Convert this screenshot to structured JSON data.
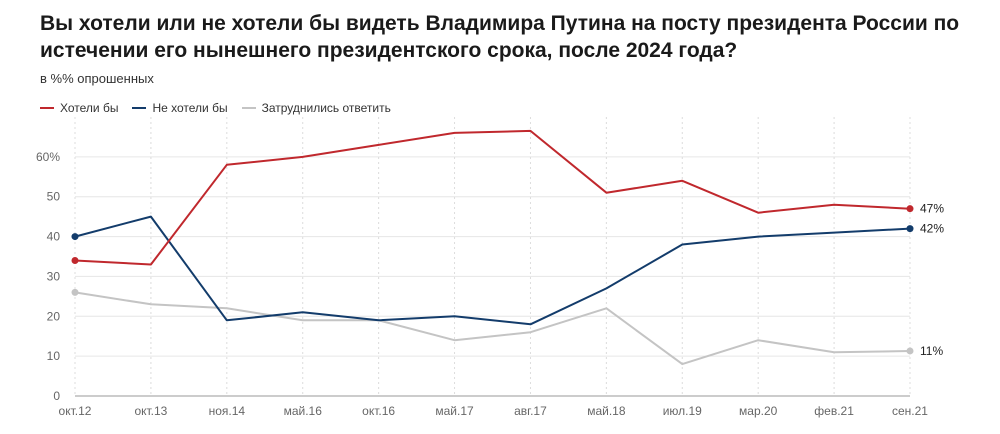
{
  "title": "Вы хотели или не хотели бы видеть Владимира Путина на посту президента России по истечении его нынешнего президентского срока, после 2024 года?",
  "subtitle": "в %% опрошенных",
  "chart_data": {
    "type": "line",
    "title": "Вы хотели или не хотели бы видеть Владимира Путина на посту президента России по истечении его нынешнего президентского срока, после 2024 года?",
    "subtitle": "в %% опрошенных",
    "categories": [
      "окт.12",
      "окт.13",
      "ноя.14",
      "май.16",
      "окт.16",
      "май.17",
      "авг.17",
      "май.18",
      "июл.19",
      "мар.20",
      "фев.21",
      "сен.21"
    ],
    "y_ticks": [
      "0",
      "10",
      "20",
      "30",
      "40",
      "50",
      "60%"
    ],
    "ylim": [
      0,
      70
    ],
    "grid": true,
    "legend_position": "top-left",
    "series": [
      {
        "name": "Хотели бы",
        "color": "#c0282d",
        "values": [
          34,
          33,
          58,
          60,
          63,
          66,
          66.5,
          51,
          54,
          46,
          48,
          47
        ],
        "end_label": "47%"
      },
      {
        "name": "Не хотели бы",
        "color": "#133c6b",
        "values": [
          40,
          45,
          19,
          21,
          19,
          20,
          18,
          27,
          38,
          40,
          41,
          42
        ],
        "end_label": "42%"
      },
      {
        "name": "Затруднились ответить",
        "color": "#c4c4c4",
        "values": [
          26,
          23,
          22,
          19,
          19,
          14,
          16,
          22,
          8,
          14,
          11,
          11.3
        ],
        "end_label": "11%"
      }
    ]
  }
}
